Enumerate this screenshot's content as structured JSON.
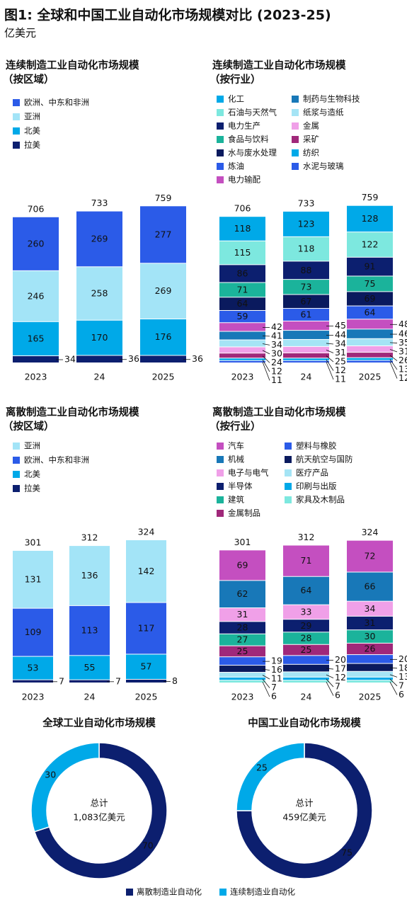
{
  "header": {
    "title": "图1: 全球和中国工业自动化市场规模对比 (2023-25)",
    "unit": "亿美元"
  },
  "chart_data": [
    {
      "type": "bar",
      "stacked": true,
      "title": "连续制造工业自动化市场规模",
      "subtitle": "（按区域）",
      "legend_columns": 1,
      "categories": [
        "2023",
        "24",
        "2025"
      ],
      "totals": [
        706,
        733,
        759
      ],
      "series": [
        {
          "name": "欧洲、中东和非洲",
          "color": "#2b5be8",
          "values": [
            260,
            269,
            277
          ]
        },
        {
          "name": "亚洲",
          "color": "#a3e4f7",
          "values": [
            246,
            258,
            269
          ]
        },
        {
          "name": "北美",
          "color": "#00a9e8",
          "values": [
            165,
            170,
            176
          ]
        },
        {
          "name": "拉美",
          "color": "#0c1f6f",
          "values": [
            34,
            36,
            36
          ]
        }
      ]
    },
    {
      "type": "bar",
      "stacked": true,
      "title": "连续制造工业自动化市场规模",
      "subtitle": "（按行业）",
      "legend_columns": 2,
      "categories": [
        "2023",
        "24",
        "2025"
      ],
      "totals": [
        706,
        733,
        759
      ],
      "series": [
        {
          "name": "化工",
          "color": "#00a9e8",
          "values": [
            118,
            123,
            128
          ]
        },
        {
          "name": "石油与天然气",
          "color": "#7de8df",
          "values": [
            115,
            118,
            122
          ]
        },
        {
          "name": "电力生产",
          "color": "#0c1f6f",
          "values": [
            86,
            88,
            91
          ]
        },
        {
          "name": "食品与饮料",
          "color": "#1bb39b",
          "values": [
            71,
            73,
            75
          ]
        },
        {
          "name": "水与废水处理",
          "color": "#0a1a5e",
          "values": [
            64,
            67,
            69
          ]
        },
        {
          "name": "炼油",
          "color": "#2b5be8",
          "values": [
            59,
            61,
            64
          ]
        },
        {
          "name": "电力输配",
          "color": "#c44fc0",
          "values": [
            42,
            45,
            48
          ]
        },
        {
          "name": "制药与生物科技",
          "color": "#1878b8",
          "values": [
            41,
            44,
            46
          ]
        },
        {
          "name": "纸浆与造纸",
          "color": "#a5e4f5",
          "values": [
            34,
            34,
            35
          ]
        },
        {
          "name": "金属",
          "color": "#f0a0e8",
          "values": [
            30,
            31,
            31
          ]
        },
        {
          "name": "采矿",
          "color": "#a0287a",
          "values": [
            24,
            25,
            26
          ]
        },
        {
          "name": "纺织",
          "color": "#00a9e8",
          "values": [
            12,
            12,
            13
          ]
        },
        {
          "name": "水泥与玻璃",
          "color": "#2b5be8",
          "values": [
            11,
            11,
            12
          ]
        }
      ]
    },
    {
      "type": "bar",
      "stacked": true,
      "title": "离散制造工业自动化市场规模",
      "subtitle": "（按区域）",
      "legend_columns": 1,
      "categories": [
        "2023",
        "24",
        "2025"
      ],
      "totals": [
        301,
        312,
        324
      ],
      "series": [
        {
          "name": "亚洲",
          "color": "#a3e4f7",
          "values": [
            131,
            136,
            142
          ]
        },
        {
          "name": "欧洲、中东和非洲",
          "color": "#2b5be8",
          "values": [
            109,
            113,
            117
          ]
        },
        {
          "name": "北美",
          "color": "#00a9e8",
          "values": [
            53,
            55,
            57
          ]
        },
        {
          "name": "拉美",
          "color": "#0c1f6f",
          "values": [
            7,
            7,
            8
          ]
        }
      ]
    },
    {
      "type": "bar",
      "stacked": true,
      "title": "离散制造工业自动化市场规模",
      "subtitle": "（按行业）",
      "legend_columns": 2,
      "categories": [
        "2023",
        "24",
        "2025"
      ],
      "totals": [
        301,
        312,
        324
      ],
      "series": [
        {
          "name": "汽车",
          "color": "#c44fc0",
          "values": [
            69,
            71,
            72
          ]
        },
        {
          "name": "机械",
          "color": "#1878b8",
          "values": [
            62,
            64,
            66
          ]
        },
        {
          "name": "电子与电气",
          "color": "#f0a0e8",
          "values": [
            31,
            33,
            34
          ]
        },
        {
          "name": "半导体",
          "color": "#0c1f6f",
          "values": [
            28,
            29,
            31
          ]
        },
        {
          "name": "建筑",
          "color": "#1bb39b",
          "values": [
            27,
            28,
            30
          ]
        },
        {
          "name": "金属制品",
          "color": "#a0287a",
          "values": [
            25,
            25,
            26
          ]
        },
        {
          "name": "塑料与橡胶",
          "color": "#2b5be8",
          "values": [
            19,
            20,
            20
          ]
        },
        {
          "name": "航天航空与国防",
          "color": "#0a1a5e",
          "values": [
            16,
            17,
            18
          ]
        },
        {
          "name": "医疗产品",
          "color": "#a5e4f5",
          "values": [
            11,
            12,
            13
          ]
        },
        {
          "name": "印刷与出版",
          "color": "#00a9e8",
          "values": [
            7,
            7,
            7
          ]
        },
        {
          "name": "家具及木制品",
          "color": "#7de8df",
          "values": [
            6,
            6,
            6
          ]
        }
      ]
    },
    {
      "type": "pie",
      "title": "全球工业自动化市场规模",
      "center_label": "总计",
      "total_label": "1,083亿美元",
      "values": [
        70,
        30
      ]
    },
    {
      "type": "pie",
      "title": "中国工业自动化市场规模",
      "center_label": "总计",
      "total_label": "459亿美元",
      "values": [
        75,
        25
      ]
    }
  ],
  "pie_legend": {
    "labels": [
      "离散制造业自动化",
      "连续制造业自动化"
    ],
    "colors": [
      "#0c1f6f",
      "#00a9e8"
    ]
  }
}
